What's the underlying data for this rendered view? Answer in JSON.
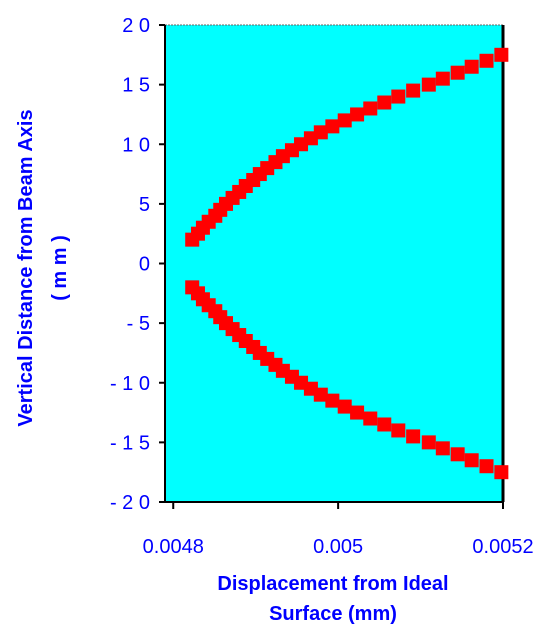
{
  "chart_data": {
    "type": "scatter",
    "xlabel_lines": [
      "Displacement  from  Ideal",
      "Surface   (mm)"
    ],
    "ylabel_lines": [
      "Vertical  Distance  from  Beam  Axis",
      "( m m )"
    ],
    "xlim": [
      0.00479,
      0.0052
    ],
    "ylim": [
      -20,
      20
    ],
    "x_ticks": [
      0.0048,
      0.005,
      0.0052
    ],
    "x_tick_labels": [
      "0.0048",
      "0.005",
      "0.0052"
    ],
    "y_ticks": [
      20,
      15,
      10,
      5,
      0,
      -5,
      -10,
      -15,
      -20
    ],
    "y_tick_labels": [
      "2 0",
      "1 5",
      "1 0",
      "5",
      "0",
      "- 5",
      "- 1 0",
      "- 1 5",
      "- 2 0"
    ],
    "grid": false,
    "colors": {
      "plot_background": "#00ffff",
      "marker": "#ff0000",
      "text": "#0000ff",
      "axis": "#000000"
    },
    "series": [
      {
        "values": [
          {
            "x": 0.004823,
            "y": 2.0
          },
          {
            "x": 0.00483,
            "y": 2.5
          },
          {
            "x": 0.004836,
            "y": 3.0
          },
          {
            "x": 0.004843,
            "y": 3.5
          },
          {
            "x": 0.004851,
            "y": 4.0
          },
          {
            "x": 0.004857,
            "y": 4.5
          },
          {
            "x": 0.004864,
            "y": 5.0
          },
          {
            "x": 0.004872,
            "y": 5.5
          },
          {
            "x": 0.00488,
            "y": 6.0
          },
          {
            "x": 0.004888,
            "y": 6.5
          },
          {
            "x": 0.004897,
            "y": 7.0
          },
          {
            "x": 0.004905,
            "y": 7.5
          },
          {
            "x": 0.004914,
            "y": 8.0
          },
          {
            "x": 0.004924,
            "y": 8.5
          },
          {
            "x": 0.004933,
            "y": 9.0
          },
          {
            "x": 0.004944,
            "y": 9.5
          },
          {
            "x": 0.004955,
            "y": 10.0
          },
          {
            "x": 0.004967,
            "y": 10.5
          },
          {
            "x": 0.004979,
            "y": 11.0
          },
          {
            "x": 0.004993,
            "y": 11.5
          },
          {
            "x": 0.005008,
            "y": 12.0
          },
          {
            "x": 0.005023,
            "y": 12.5
          },
          {
            "x": 0.005039,
            "y": 13.0
          },
          {
            "x": 0.005056,
            "y": 13.5
          },
          {
            "x": 0.005073,
            "y": 14.0
          },
          {
            "x": 0.005091,
            "y": 14.5
          },
          {
            "x": 0.00511,
            "y": 15.0
          },
          {
            "x": 0.005127,
            "y": 15.5
          },
          {
            "x": 0.005145,
            "y": 16.0
          },
          {
            "x": 0.005162,
            "y": 16.5
          },
          {
            "x": 0.00518,
            "y": 17.0
          },
          {
            "x": 0.005198,
            "y": 17.5
          },
          {
            "x": 0.004823,
            "y": -2.0
          },
          {
            "x": 0.00483,
            "y": -2.5
          },
          {
            "x": 0.004836,
            "y": -3.0
          },
          {
            "x": 0.004843,
            "y": -3.5
          },
          {
            "x": 0.004851,
            "y": -4.0
          },
          {
            "x": 0.004857,
            "y": -4.5
          },
          {
            "x": 0.004864,
            "y": -5.0
          },
          {
            "x": 0.004872,
            "y": -5.5
          },
          {
            "x": 0.00488,
            "y": -6.0
          },
          {
            "x": 0.004888,
            "y": -6.5
          },
          {
            "x": 0.004897,
            "y": -7.0
          },
          {
            "x": 0.004905,
            "y": -7.5
          },
          {
            "x": 0.004914,
            "y": -8.0
          },
          {
            "x": 0.004924,
            "y": -8.5
          },
          {
            "x": 0.004933,
            "y": -9.0
          },
          {
            "x": 0.004944,
            "y": -9.5
          },
          {
            "x": 0.004955,
            "y": -10.0
          },
          {
            "x": 0.004967,
            "y": -10.5
          },
          {
            "x": 0.004979,
            "y": -11.0
          },
          {
            "x": 0.004993,
            "y": -11.5
          },
          {
            "x": 0.005008,
            "y": -12.0
          },
          {
            "x": 0.005023,
            "y": -12.5
          },
          {
            "x": 0.005039,
            "y": -13.0
          },
          {
            "x": 0.005056,
            "y": -13.5
          },
          {
            "x": 0.005073,
            "y": -14.0
          },
          {
            "x": 0.005091,
            "y": -14.5
          },
          {
            "x": 0.00511,
            "y": -15.0
          },
          {
            "x": 0.005127,
            "y": -15.5
          },
          {
            "x": 0.005145,
            "y": -16.0
          },
          {
            "x": 0.005162,
            "y": -16.5
          },
          {
            "x": 0.00518,
            "y": -17.0
          },
          {
            "x": 0.005198,
            "y": -17.5
          }
        ]
      }
    ]
  }
}
